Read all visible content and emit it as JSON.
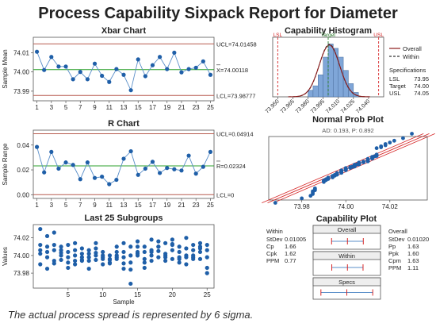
{
  "title": "Process Capability Sixpack Report for Diameter",
  "footer": "The actual process spread is represented by 6 sigma.",
  "colors": {
    "data": "#1f5fa8",
    "center": "#2ca02c",
    "limit": "#b85c50",
    "spec": "#d62728",
    "hist_bar": "#7fa6d8",
    "overall": "#8b1a1a"
  },
  "chart_data": [
    {
      "type": "line",
      "title": "Xbar Chart",
      "ylabel": "Sample Mean",
      "xlabel": "",
      "x": [
        1,
        2,
        3,
        4,
        5,
        6,
        7,
        8,
        9,
        10,
        11,
        12,
        13,
        14,
        15,
        16,
        17,
        18,
        19,
        20,
        21,
        22,
        23,
        24,
        25
      ],
      "values": [
        74.0105,
        74.001,
        74.0078,
        74.0028,
        74.0028,
        73.9962,
        74.0,
        73.9962,
        74.0043,
        73.998,
        73.9948,
        74.0015,
        73.9985,
        73.9905,
        74.0065,
        73.9978,
        74.0035,
        74.0078,
        74.0015,
        74.01,
        73.9998,
        74.0015,
        74.0022,
        74.0055,
        73.9985
      ],
      "ylim": [
        73.985,
        74.018
      ],
      "yticks": [
        73.99,
        74.0,
        74.01
      ],
      "ytick_labels": [
        "73.99",
        "74.00",
        "74.01"
      ],
      "xticks": [
        1,
        3,
        5,
        7,
        9,
        11,
        13,
        15,
        17,
        19,
        21,
        23,
        25
      ],
      "ucl": 74.01458,
      "center": 74.00118,
      "lcl": 73.98777,
      "ucl_label": "UCL=74.01458",
      "center_label": "X=74.00118",
      "lcl_label": "LCL=73.98777"
    },
    {
      "type": "line",
      "title": "R Chart",
      "ylabel": "Sample Range",
      "xlabel": "",
      "x": [
        1,
        2,
        3,
        4,
        5,
        6,
        7,
        8,
        9,
        10,
        11,
        12,
        13,
        14,
        15,
        16,
        17,
        18,
        19,
        20,
        21,
        22,
        23,
        24,
        25
      ],
      "values": [
        0.0385,
        0.018,
        0.0345,
        0.021,
        0.026,
        0.024,
        0.0125,
        0.026,
        0.0135,
        0.0145,
        0.0085,
        0.012,
        0.029,
        0.035,
        0.016,
        0.021,
        0.0265,
        0.0175,
        0.0215,
        0.0205,
        0.0195,
        0.0315,
        0.017,
        0.0225,
        0.0345
      ],
      "ylim": [
        -0.003,
        0.052
      ],
      "yticks": [
        0.0,
        0.02,
        0.04
      ],
      "ytick_labels": [
        "0.00",
        "0.02",
        "0.04"
      ],
      "xticks": [
        1,
        3,
        5,
        7,
        9,
        11,
        13,
        15,
        17,
        19,
        21,
        23,
        25
      ],
      "ucl": 0.04914,
      "center": 0.02324,
      "lcl": 0.0,
      "ucl_label": "UCL=0.04914",
      "center_label": "R=0.02324",
      "lcl_label": "LCL=0"
    },
    {
      "type": "scatter",
      "title": "Last 25 Subgroups",
      "ylabel": "Values",
      "xlabel": "Sample",
      "xlim": [
        0,
        26
      ],
      "ylim": [
        73.963,
        74.035
      ],
      "yticks": [
        73.98,
        74.0,
        74.02
      ],
      "ytick_labels": [
        "73.98",
        "74.00",
        "74.02"
      ],
      "xticks": [
        5,
        10,
        15,
        20,
        25
      ],
      "subgroups": [
        [
          74.03,
          74.012,
          74.006,
          74.002,
          73.99
        ],
        [
          74.022,
          74.004,
          73.998,
          73.985,
          74.01
        ],
        [
          74.026,
          74.012,
          74.006,
          73.994,
          73.991
        ],
        [
          74.01,
          74.006,
          74.0,
          73.995,
          74.003
        ],
        [
          74.012,
          74.004,
          73.998,
          73.992,
          73.986
        ],
        [
          74.014,
          74.0,
          73.994,
          73.99,
          74.006
        ],
        [
          74.008,
          74.002,
          73.998,
          73.994,
          73.995
        ],
        [
          74.006,
          73.998,
          73.994,
          73.985,
          74.002
        ],
        [
          74.014,
          74.008,
          74.003,
          74.0,
          73.995
        ],
        [
          74.004,
          74.0,
          73.996,
          73.99,
          73.998
        ],
        [
          74.0,
          73.996,
          73.992,
          73.991,
          73.995
        ],
        [
          74.004,
          74.0,
          73.998,
          73.996,
          74.01
        ],
        [
          74.014,
          74.004,
          73.998,
          73.991,
          73.985
        ],
        [
          74.01,
          74.0,
          73.992,
          73.984,
          73.968
        ],
        [
          74.016,
          74.01,
          74.004,
          74.0,
          74.002
        ],
        [
          74.01,
          74.004,
          73.996,
          73.986,
          73.992
        ],
        [
          74.018,
          74.006,
          74.0,
          73.994,
          74.004
        ],
        [
          74.016,
          74.01,
          74.005,
          73.998,
          74.01
        ],
        [
          74.014,
          74.002,
          73.998,
          73.994,
          74.0
        ],
        [
          74.018,
          74.012,
          74.006,
          73.996,
          74.013
        ],
        [
          74.01,
          74.004,
          73.998,
          73.992,
          73.996
        ],
        [
          74.02,
          74.008,
          73.998,
          73.99,
          74.0
        ],
        [
          74.012,
          74.006,
          74.0,
          73.996,
          73.998
        ],
        [
          74.014,
          74.008,
          74.004,
          73.996,
          74.01
        ],
        [
          74.012,
          74.006,
          73.998,
          73.986,
          73.98
        ]
      ]
    },
    {
      "type": "bar",
      "title": "Capability Histogram",
      "bins": [
        73.9825,
        73.9875,
        73.9925,
        73.9975,
        74.0025,
        74.0075,
        74.0125,
        74.0175,
        74.0225,
        74.0275
      ],
      "bin_width": 0.005,
      "counts": [
        3,
        5,
        10,
        18,
        24,
        22,
        18,
        12,
        6,
        2
      ],
      "ylim": [
        0,
        27
      ],
      "xlim": [
        73.945,
        74.055
      ],
      "xticks": [
        73.95,
        73.965,
        73.98,
        73.995,
        74.01,
        74.025,
        74.04
      ],
      "xtick_labels": [
        "73.950",
        "73.965",
        "73.980",
        "73.995",
        "74.010",
        "74.025",
        "74.040"
      ],
      "lsl": 73.95,
      "target": 74.0,
      "usl": 74.05,
      "lsl_label": "LSL",
      "target_label": "Target",
      "usl_label": "USL",
      "mean": 74.00118,
      "sd_overall": 0.0102,
      "sd_within": 0.01005,
      "legend": [
        "Overall",
        "Within"
      ],
      "legend_position": "top-right",
      "spec_title": "Specifications",
      "specs": [
        {
          "label": "LSL",
          "value": "73.95"
        },
        {
          "label": "Target",
          "value": "74.00"
        },
        {
          "label": "USL",
          "value": "74.05"
        }
      ]
    },
    {
      "type": "scatter",
      "title": "Normal Prob Plot",
      "subtitle": "AD: 0.193, P: 0.892",
      "xlim": [
        73.965,
        74.037
      ],
      "xticks": [
        73.98,
        74.0,
        74.02
      ],
      "xtick_labels": [
        "73.98",
        "74.00",
        "74.02"
      ],
      "mean": 74.00118,
      "sd": 0.0102
    },
    {
      "type": "table",
      "title": "Capability Plot",
      "within": {
        "heading": "Within",
        "stats": [
          {
            "label": "StDev",
            "value": "0.01005"
          },
          {
            "label": "Cp",
            "value": "1.66"
          },
          {
            "label": "Cpk",
            "value": "1.62"
          },
          {
            "label": "PPM",
            "value": "0.77"
          }
        ]
      },
      "overall": {
        "heading": "Overall",
        "stats": [
          {
            "label": "StDev",
            "value": "0.01020"
          },
          {
            "label": "Pp",
            "value": "1.63"
          },
          {
            "label": "Ppk",
            "value": "1.60"
          },
          {
            "label": "Cpm",
            "value": "1.63"
          },
          {
            "label": "PPM",
            "value": "1.11"
          }
        ]
      },
      "bars": [
        {
          "label": "Overall",
          "low": 73.9706,
          "mid": 74.0012,
          "high": 74.0318
        },
        {
          "label": "Within",
          "low": 73.971,
          "mid": 74.0012,
          "high": 74.0313
        },
        {
          "label": "Specs",
          "low": 73.95,
          "mid": 74.0,
          "high": 74.05
        }
      ],
      "xlim": [
        73.935,
        74.065
      ]
    }
  ]
}
